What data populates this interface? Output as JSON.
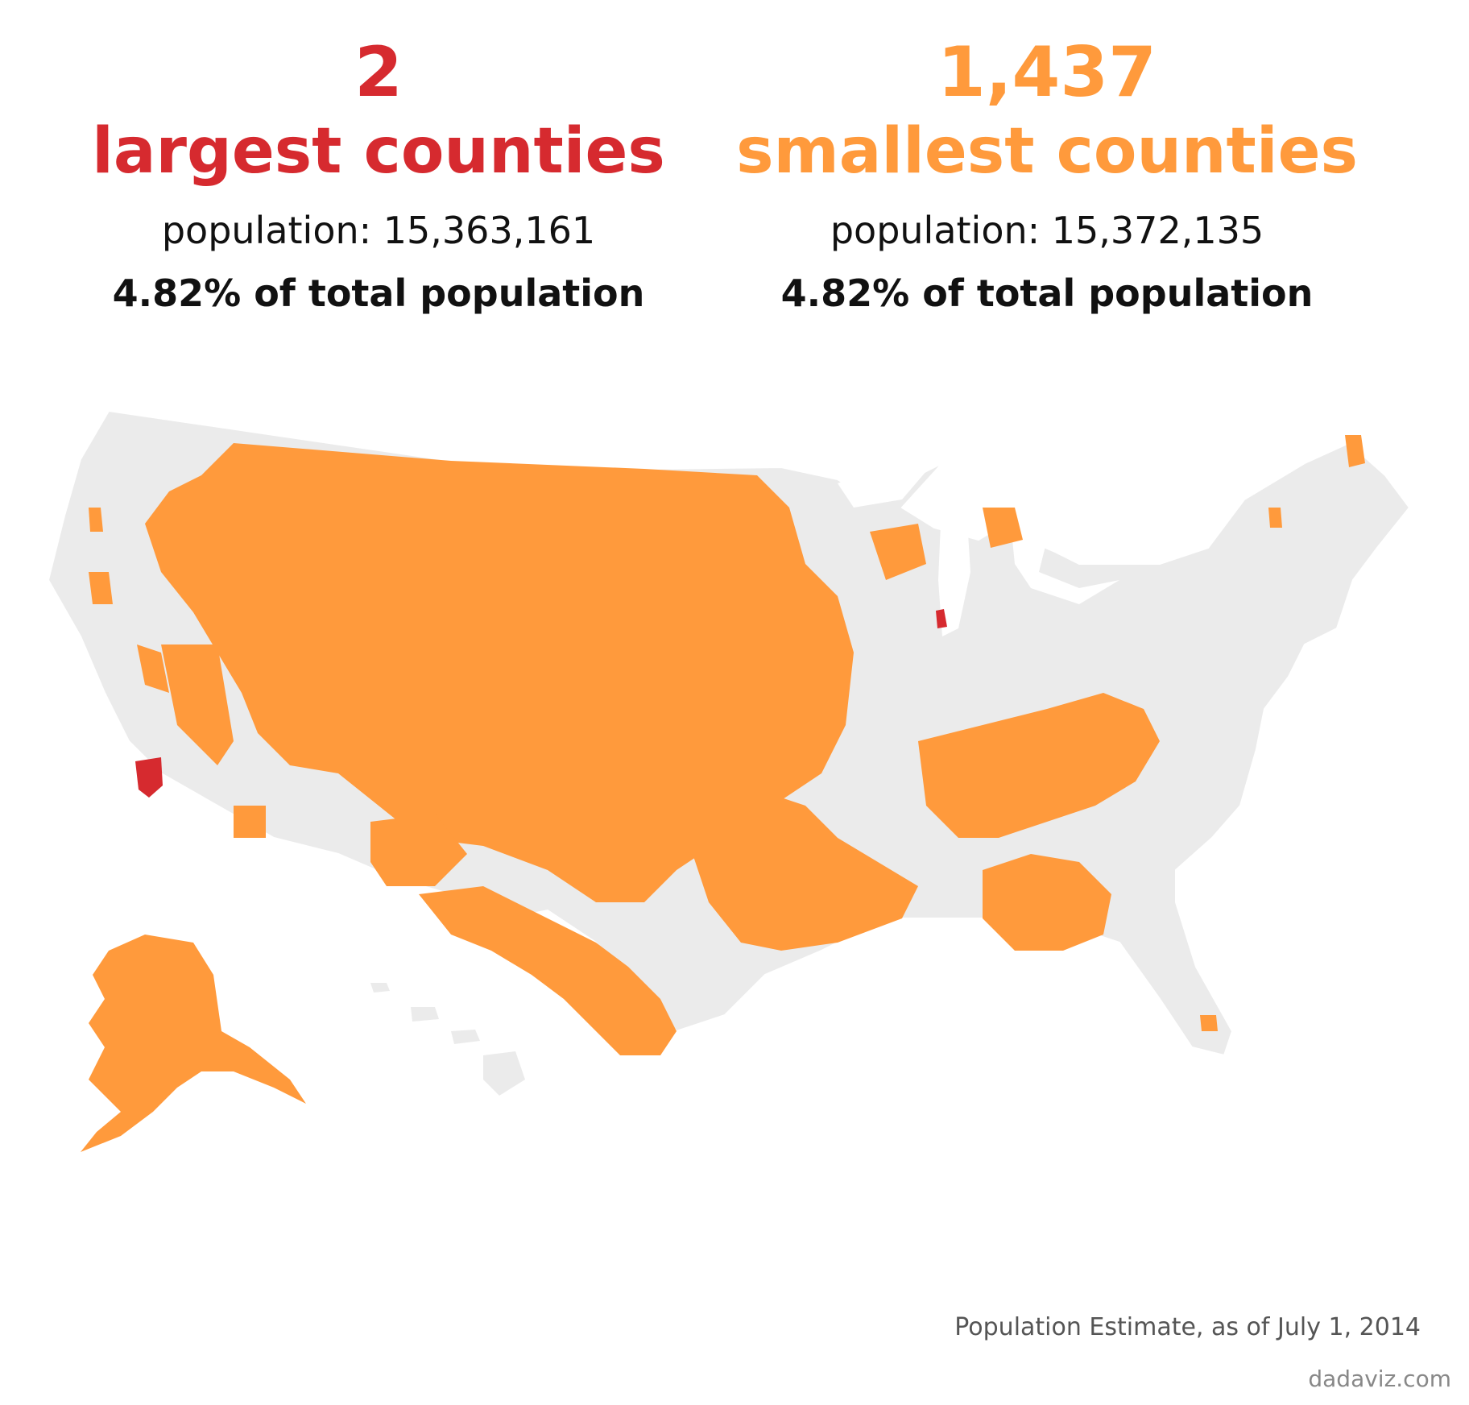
{
  "left": {
    "count": "2",
    "label": "largest counties",
    "population": "population: 15,363,161",
    "share": "4.82% of total population"
  },
  "right": {
    "count": "1,437",
    "label": "smallest counties",
    "population": "population: 15,372,135",
    "share": "4.82% of total population"
  },
  "source": "Population Estimate, as of July 1, 2014",
  "credit": "dadaviz.com",
  "colors": {
    "largest": "#d62a2f",
    "smallest": "#ff9a3c",
    "land": "#ebebeb",
    "text": "#111111"
  },
  "map": {
    "region": "United States counties",
    "highlighted_largest": [
      "Los Angeles County",
      "Cook County"
    ]
  }
}
